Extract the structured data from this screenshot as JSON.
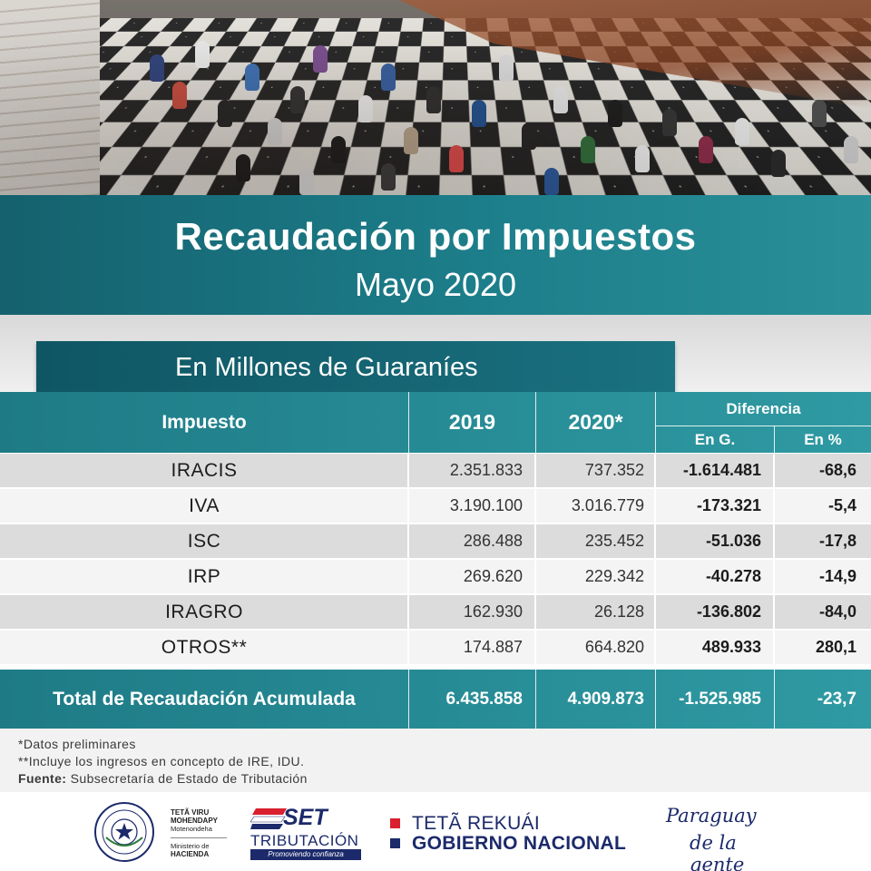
{
  "header": {
    "title": "Recaudación por Impuestos",
    "subtitle": "Mayo 2020",
    "units": "En Millones de Guaraníes"
  },
  "table": {
    "columns": {
      "impuesto": "Impuesto",
      "y2019": "2019",
      "y2020": "2020*",
      "diferencia": "Diferencia",
      "en_g": "En G.",
      "en_pct": "En %"
    },
    "rows": [
      {
        "name": "IRACIS",
        "v2019": "2.351.833",
        "v2020": "737.352",
        "dif_g": "-1.614.481",
        "dif_pct": "-68,6"
      },
      {
        "name": "IVA",
        "v2019": "3.190.100",
        "v2020": "3.016.779",
        "dif_g": "-173.321",
        "dif_pct": "-5,4"
      },
      {
        "name": "ISC",
        "v2019": "286.488",
        "v2020": "235.452",
        "dif_g": "-51.036",
        "dif_pct": "-17,8"
      },
      {
        "name": "IRP",
        "v2019": "269.620",
        "v2020": "229.342",
        "dif_g": "-40.278",
        "dif_pct": "-14,9"
      },
      {
        "name": "IRAGRO",
        "v2019": "162.930",
        "v2020": "26.128",
        "dif_g": "-136.802",
        "dif_pct": "-84,0"
      },
      {
        "name": "OTROS**",
        "v2019": "174.887",
        "v2020": "664.820",
        "dif_g": "489.933",
        "dif_pct": "280,1"
      }
    ],
    "total": {
      "label": "Total de Recaudación Acumulada",
      "v2019": "6.435.858",
      "v2020": "4.909.873",
      "dif_g": "-1.525.985",
      "dif_pct": "-23,7"
    }
  },
  "notes": {
    "n1": "*Datos preliminares",
    "n2": "**Incluye los ingresos en concepto de IRE, IDU.",
    "source_label": "Fuente:",
    "source_text": "Subsecretaría de Estado de Tributación"
  },
  "footer": {
    "mh_line1": "TETÃ VIRU",
    "mh_line2": "MOHENDAPY",
    "mh_line3": "Motenondeha",
    "mh_line4": "Ministerio de",
    "mh_line5": "HACIENDA",
    "set_word": "SET",
    "set_tributacion": "TRIBUTACIÓN",
    "set_slogan": "Promoviendo confianza",
    "gn_line1": "TETÃ REKUÁI",
    "gn_line2": "GOBIERNO NACIONAL",
    "pg_line1": "Paraguay",
    "pg_line2": "de la gente",
    "colors": {
      "teal_dark": "#15616e",
      "teal": "#2a8f98",
      "navy": "#1c2a6b",
      "red": "#d9202e"
    }
  }
}
